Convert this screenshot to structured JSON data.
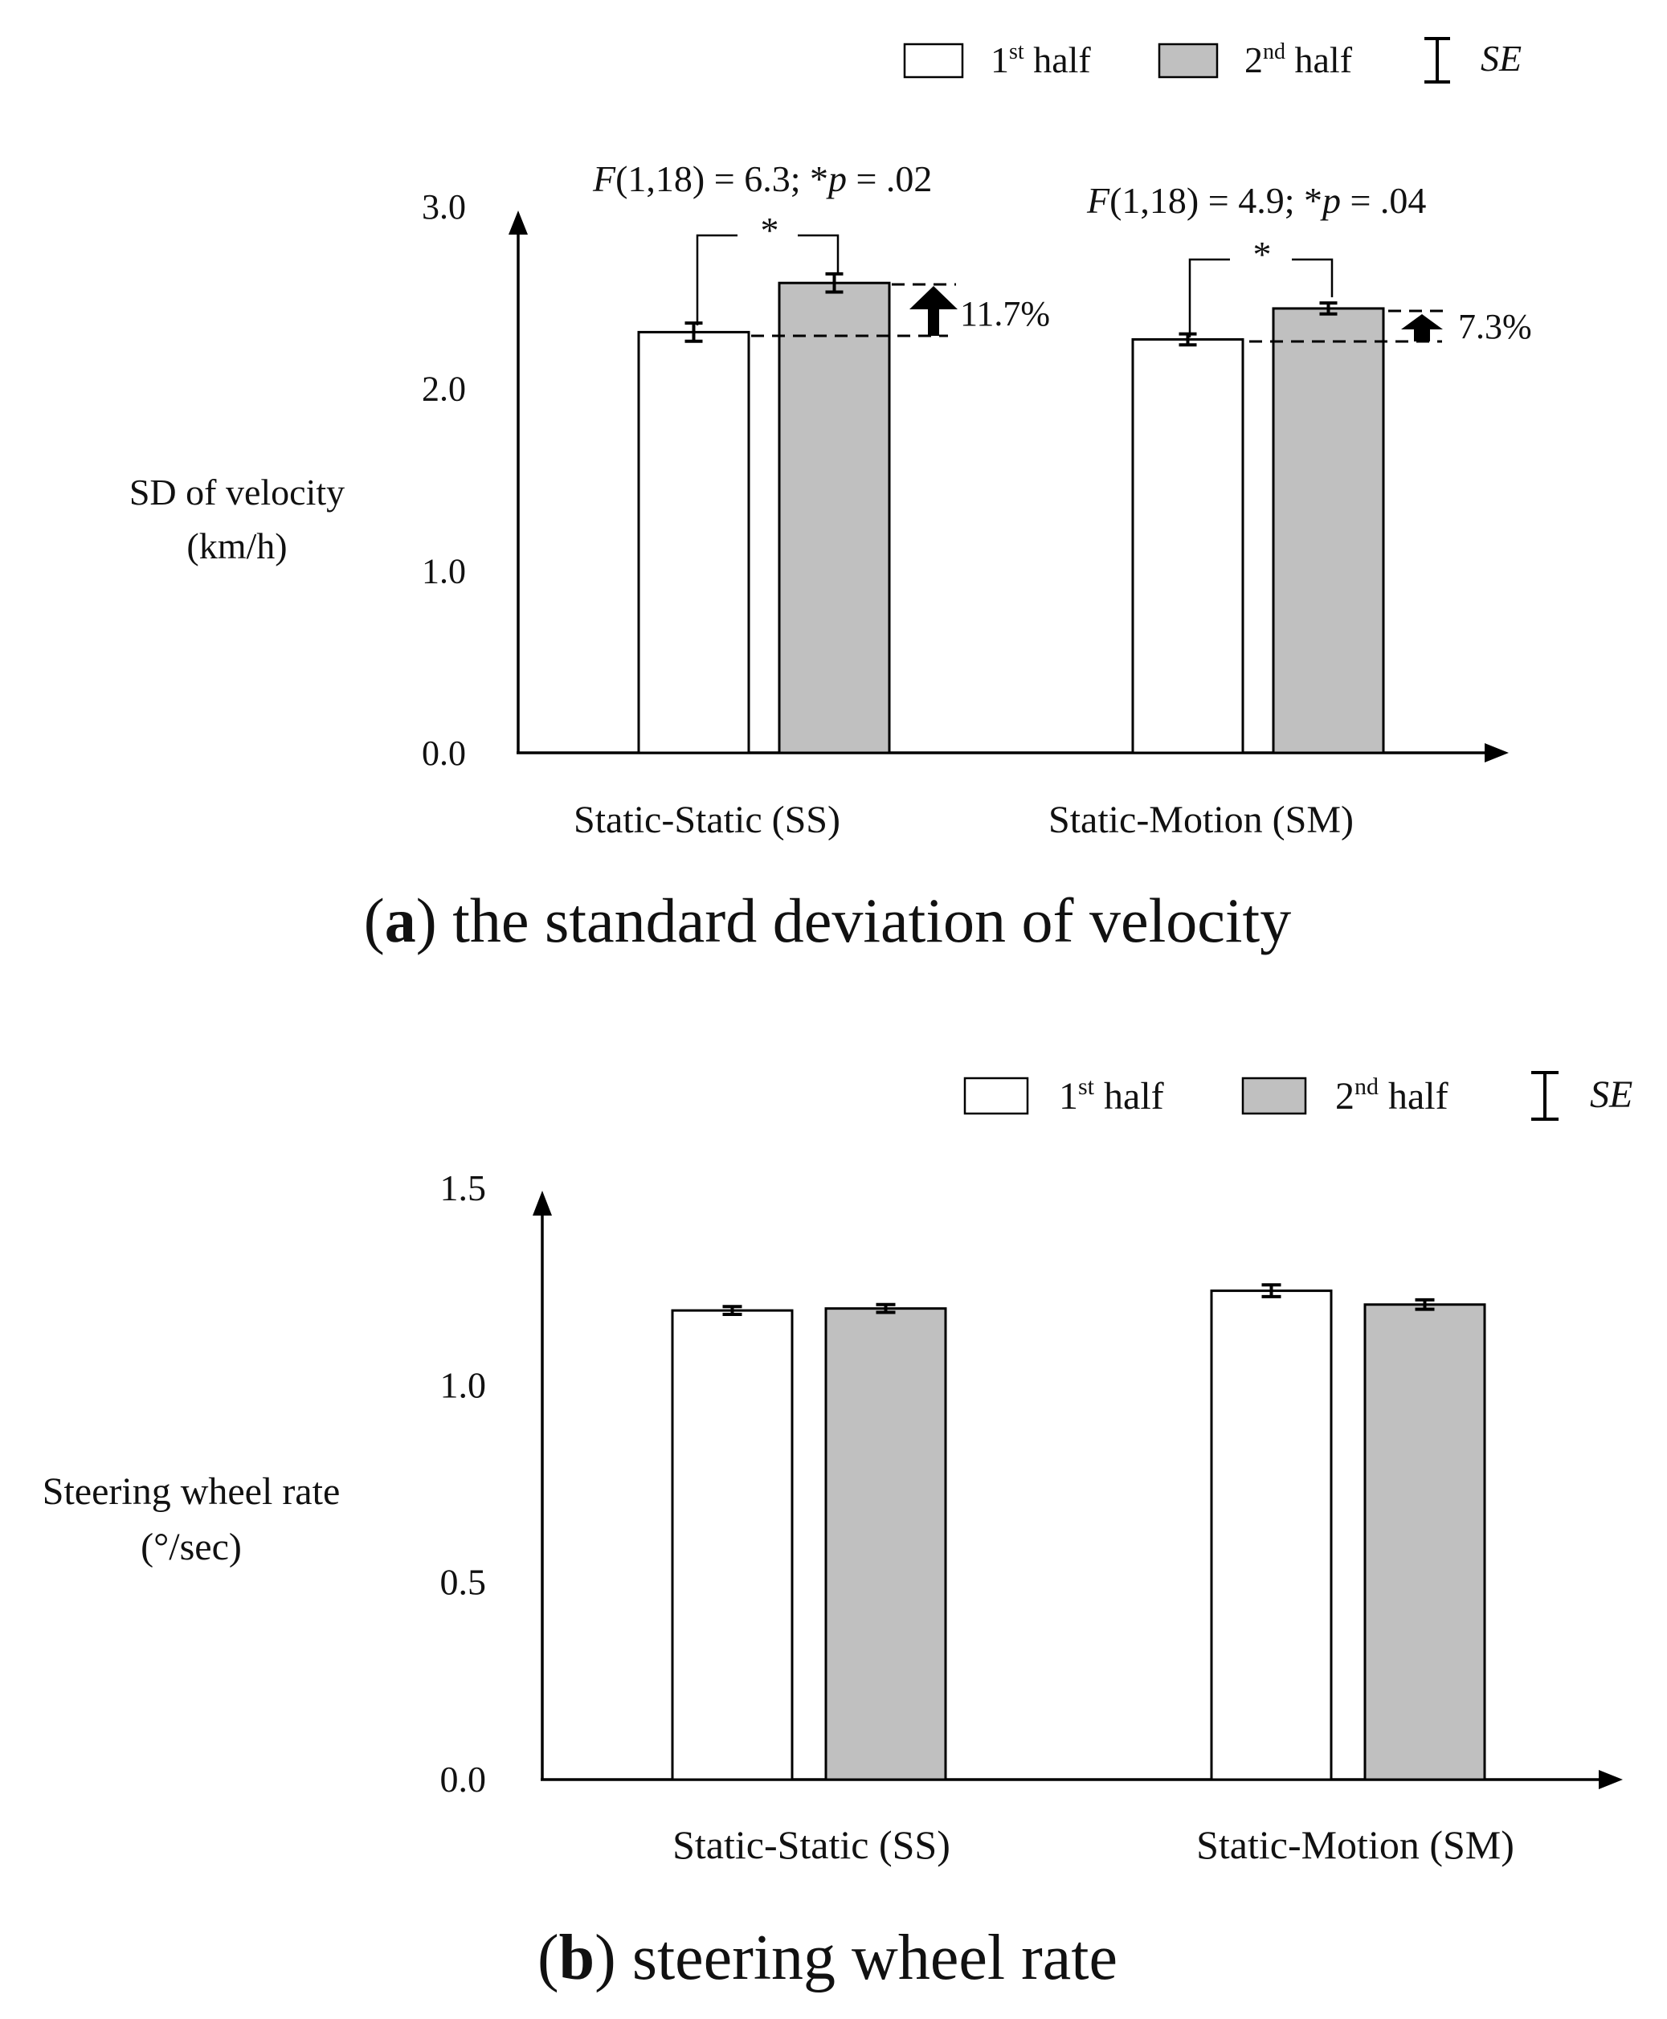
{
  "colors": {
    "first_half_fill": "#ffffff",
    "second_half_fill": "#c0c0c0",
    "stroke": "#000000"
  },
  "chart_data": [
    {
      "type": "bar",
      "panel": "a",
      "caption": {
        "label": "a",
        "text": ") the standard deviation of velocity",
        "open": "("
      },
      "ylabel": [
        "SD of velocity",
        "(km/h)"
      ],
      "xlabel": "",
      "ylim": [
        0,
        3.0
      ],
      "yticks": [
        {
          "value": 0.0,
          "label": "0.0"
        },
        {
          "value": 1.0,
          "label": "1.0"
        },
        {
          "value": 2.0,
          "label": "2.0"
        },
        {
          "value": 3.0,
          "label": "3.0"
        }
      ],
      "categories": [
        "Static-Static (SS)",
        "Static-Motion (SM)"
      ],
      "legend": {
        "position": "top-right",
        "first": {
          "base": "1",
          "sup": "st",
          "rest": " half"
        },
        "second": {
          "base": "2",
          "sup": "nd",
          "rest": " half"
        },
        "se": "SE"
      },
      "series": [
        {
          "name": "1st half",
          "values": [
            2.31,
            2.27
          ],
          "se": [
            0.05,
            0.03
          ]
        },
        {
          "name": "2nd half",
          "values": [
            2.58,
            2.44
          ],
          "se": [
            0.05,
            0.03
          ]
        }
      ],
      "annotations": [
        {
          "category": "Static-Static (SS)",
          "stat": "(1,18) = 6.3; *",
          "F": "F",
          "p": "p",
          "pval": " = .02",
          "star": "*",
          "increase": "11.7%"
        },
        {
          "category": "Static-Motion (SM)",
          "stat": "(1,18) = 4.9; *",
          "F": "F",
          "p": "p",
          "pval": " = .04",
          "star": "*",
          "increase": "7.3%"
        }
      ]
    },
    {
      "type": "bar",
      "panel": "b",
      "caption": {
        "label": "b",
        "text": ") steering wheel rate",
        "open": "("
      },
      "ylabel": [
        "Steering wheel rate",
        "(°/sec)"
      ],
      "xlabel": "",
      "ylim": [
        0,
        1.5
      ],
      "yticks": [
        {
          "value": 0.0,
          "label": "0.0"
        },
        {
          "value": 0.5,
          "label": "0.5"
        },
        {
          "value": 1.0,
          "label": "1.0"
        },
        {
          "value": 1.5,
          "label": "1.5"
        }
      ],
      "categories": [
        "Static-Static (SS)",
        "Static-Motion (SM)"
      ],
      "legend": {
        "position": "top-right",
        "first": {
          "base": "1",
          "sup": "st",
          "rest": " half"
        },
        "second": {
          "base": "2",
          "sup": "nd",
          "rest": " half"
        },
        "se": "SE"
      },
      "series": [
        {
          "name": "1st half",
          "values": [
            1.19,
            1.24
          ],
          "se": [
            0.01,
            0.015
          ]
        },
        {
          "name": "2nd half",
          "values": [
            1.195,
            1.205
          ],
          "se": [
            0.01,
            0.012
          ]
        }
      ],
      "annotations": []
    }
  ]
}
